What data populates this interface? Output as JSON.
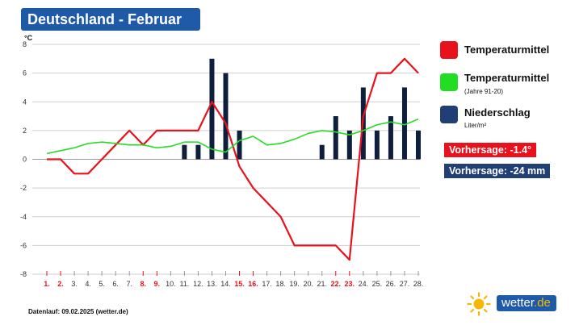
{
  "header": {
    "title": "Deutschland - Februar"
  },
  "legend": {
    "temp_mean": {
      "label": "Temperaturmittel",
      "color": "#e8111c"
    },
    "temp_clim": {
      "label": "Temperaturmittel",
      "sub": "(Jahre 91-20)",
      "color": "#22dd22"
    },
    "precip": {
      "label": "Niederschlag",
      "sub": "Liter/m²",
      "color": "#1f3f75"
    }
  },
  "forecast": {
    "temp": "Vorhersage: -1.4°",
    "precip": "Vorhersage: -24 mm"
  },
  "footer": {
    "text": "Datenlauf: 09.02.2025 (wetter.de)"
  },
  "brand": {
    "name": "wetter",
    "suffix": ".de",
    "icon": "sun-icon"
  },
  "chart_data": {
    "type": "line",
    "ylabel": "°C",
    "ylim": [
      -8,
      8
    ],
    "yticks": [
      8,
      6,
      4,
      2,
      0,
      -2,
      -4,
      -6,
      -8
    ],
    "categories": [
      "1.",
      "2.",
      "3.",
      "4.",
      "5.",
      "6.",
      "7.",
      "8.",
      "9.",
      "10.",
      "11.",
      "12.",
      "13.",
      "14.",
      "15.",
      "16.",
      "17.",
      "18.",
      "19.",
      "20.",
      "21.",
      "22.",
      "23.",
      "24.",
      "25.",
      "26.",
      "27.",
      "28."
    ],
    "weekend_categories": [
      "1.",
      "2.",
      "8.",
      "9.",
      "15.",
      "16.",
      "22.",
      "23."
    ],
    "grid": true,
    "series": [
      {
        "name": "Temperaturmittel",
        "type": "line",
        "color": "#e8111c",
        "values": [
          0,
          0,
          -1,
          -1,
          0,
          1,
          2,
          1,
          2,
          2,
          2,
          2,
          4,
          2.5,
          -0.5,
          -2,
          -3,
          -4,
          -6,
          -6,
          -6,
          -6,
          -7,
          3,
          6,
          6,
          7,
          6
        ]
      },
      {
        "name": "Temperaturmittel (Jahre 91-20)",
        "type": "line",
        "color": "#22dd22",
        "values": [
          0.4,
          0.6,
          0.8,
          1.1,
          1.2,
          1.1,
          1.0,
          1.0,
          0.8,
          0.9,
          1.2,
          1.2,
          0.7,
          0.5,
          1.3,
          1.6,
          1.0,
          1.1,
          1.4,
          1.8,
          2.0,
          1.9,
          1.7,
          2.0,
          2.4,
          2.6,
          2.4,
          2.8
        ]
      },
      {
        "name": "Niederschlag",
        "type": "bar",
        "color": "#0e1f3d",
        "values": [
          0,
          0,
          0,
          0,
          0,
          0,
          0,
          0,
          0,
          0,
          1,
          1,
          7,
          6,
          2,
          0,
          0,
          0,
          0,
          0,
          1,
          3,
          2,
          5,
          2,
          3,
          5,
          2
        ]
      }
    ]
  }
}
